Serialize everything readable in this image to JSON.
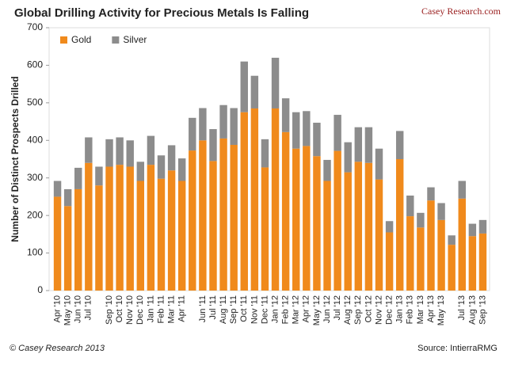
{
  "chart_data": {
    "type": "stacked-bar",
    "title": "Global Drilling Activity for Precious Metals Is Falling",
    "brand": "Casey Research.com",
    "y_label": "Number of Distinct Prospects Drilled",
    "copyright": "© Casey Research 2013",
    "source": "Source: IntierraRMG",
    "categories": [
      "Apr '10",
      "May '10",
      "Jun '10",
      "Jul '10",
      null,
      "Sep '10",
      "Oct '10",
      "Nov '10",
      "Dec '10",
      "Jan '11",
      "Feb '11",
      "Mar '11",
      "Apr '11",
      null,
      "Jun '11",
      "Jul '11",
      "Aug '11",
      "Sep '11",
      "Oct '11",
      "Nov '11",
      "Dec '11",
      "Jan '12",
      "Feb '12",
      "Mar '12",
      "Apr '12",
      "May '12",
      "Jun '12",
      "Jul '12",
      "Aug '12",
      "Sep '12",
      "Oct '12",
      "Nov '12",
      "Dec '12",
      "Jan '13",
      "Feb '13",
      "Mar '13",
      "Apr '13",
      "May '13",
      null,
      "Jul '13",
      "Aug '13",
      "Sep '13"
    ],
    "series": [
      {
        "name": "Gold",
        "color": "#f08a1c",
        "values": [
          250,
          225,
          270,
          340,
          280,
          330,
          335,
          330,
          292,
          335,
          298,
          320,
          292,
          373,
          400,
          345,
          405,
          388,
          475,
          485,
          328,
          485,
          422,
          378,
          385,
          358,
          292,
          372,
          315,
          343,
          340,
          296,
          155,
          350,
          198,
          168,
          240,
          188,
          122,
          245,
          145,
          152
        ]
      },
      {
        "name": "Silver",
        "color": "#8c8c8c",
        "values": [
          42,
          45,
          57,
          68,
          50,
          73,
          73,
          70,
          51,
          77,
          62,
          67,
          60,
          87,
          86,
          85,
          89,
          98,
          135,
          87,
          75,
          135,
          90,
          97,
          93,
          89,
          56,
          96,
          80,
          92,
          95,
          82,
          30,
          75,
          55,
          39,
          35,
          45,
          25,
          47,
          33,
          36
        ]
      }
    ],
    "ylim": [
      0,
      700
    ],
    "yticks": [
      0,
      100,
      200,
      300,
      400,
      500,
      600,
      700
    ],
    "grid": false,
    "legend": "top-left"
  }
}
